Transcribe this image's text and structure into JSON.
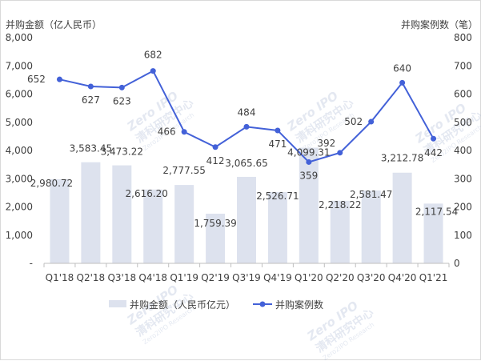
{
  "chart_data": {
    "type": "bar+line",
    "categories": [
      "Q1'18",
      "Q2'18",
      "Q3'18",
      "Q4'18",
      "Q1'19",
      "Q2'19",
      "Q3'19",
      "Q4'19",
      "Q1'20",
      "Q2'20",
      "Q3'20",
      "Q4'20",
      "Q1'21"
    ],
    "y_left_label": "并购金额（亿人民币）",
    "y_right_label": "并购案例数（笔）",
    "ylim_left": [
      0,
      8000
    ],
    "ylim_right": [
      0,
      800
    ],
    "y_left_ticks": [
      "-",
      "1,000",
      "2,000",
      "3,000",
      "4,000",
      "5,000",
      "6,000",
      "7,000",
      "8,000"
    ],
    "y_right_ticks": [
      "0",
      "100",
      "200",
      "300",
      "400",
      "500",
      "600",
      "700",
      "800"
    ],
    "series": [
      {
        "name": "并购金额（人民币亿元）",
        "type": "bar",
        "axis": "left",
        "color": "#dde2ee",
        "values": [
          2980.72,
          3583.45,
          3473.22,
          2616.2,
          2777.55,
          1759.39,
          3065.65,
          2526.71,
          4099.31,
          2218.22,
          2581.47,
          3212.78,
          2117.54
        ],
        "labels": [
          "2,980.72",
          "3,583.45",
          "3,473.22",
          "2,616.20",
          "2,777.55",
          "1,759.39",
          "3,065.65",
          "2,526.71",
          "4,099.31",
          "2,218.22",
          "2,581.47",
          "3,212.78",
          "2,117.54"
        ]
      },
      {
        "name": "并购案例数",
        "type": "line",
        "axis": "right",
        "color": "#4361d8",
        "values": [
          652,
          627,
          623,
          682,
          466,
          412,
          484,
          471,
          359,
          392,
          502,
          640,
          442
        ],
        "labels": [
          "652",
          "627",
          "623",
          "682",
          "466",
          "412",
          "484",
          "471",
          "359",
          "392",
          "502",
          "640",
          "442"
        ]
      }
    ],
    "legend_position": "bottom-center",
    "grid": false
  },
  "watermark": {
    "brand_top": "Zero",
    "brand_ipo": "IPO",
    "brand_cn": "清科研究中心",
    "brand_en": "Zero2IPO Research"
  }
}
